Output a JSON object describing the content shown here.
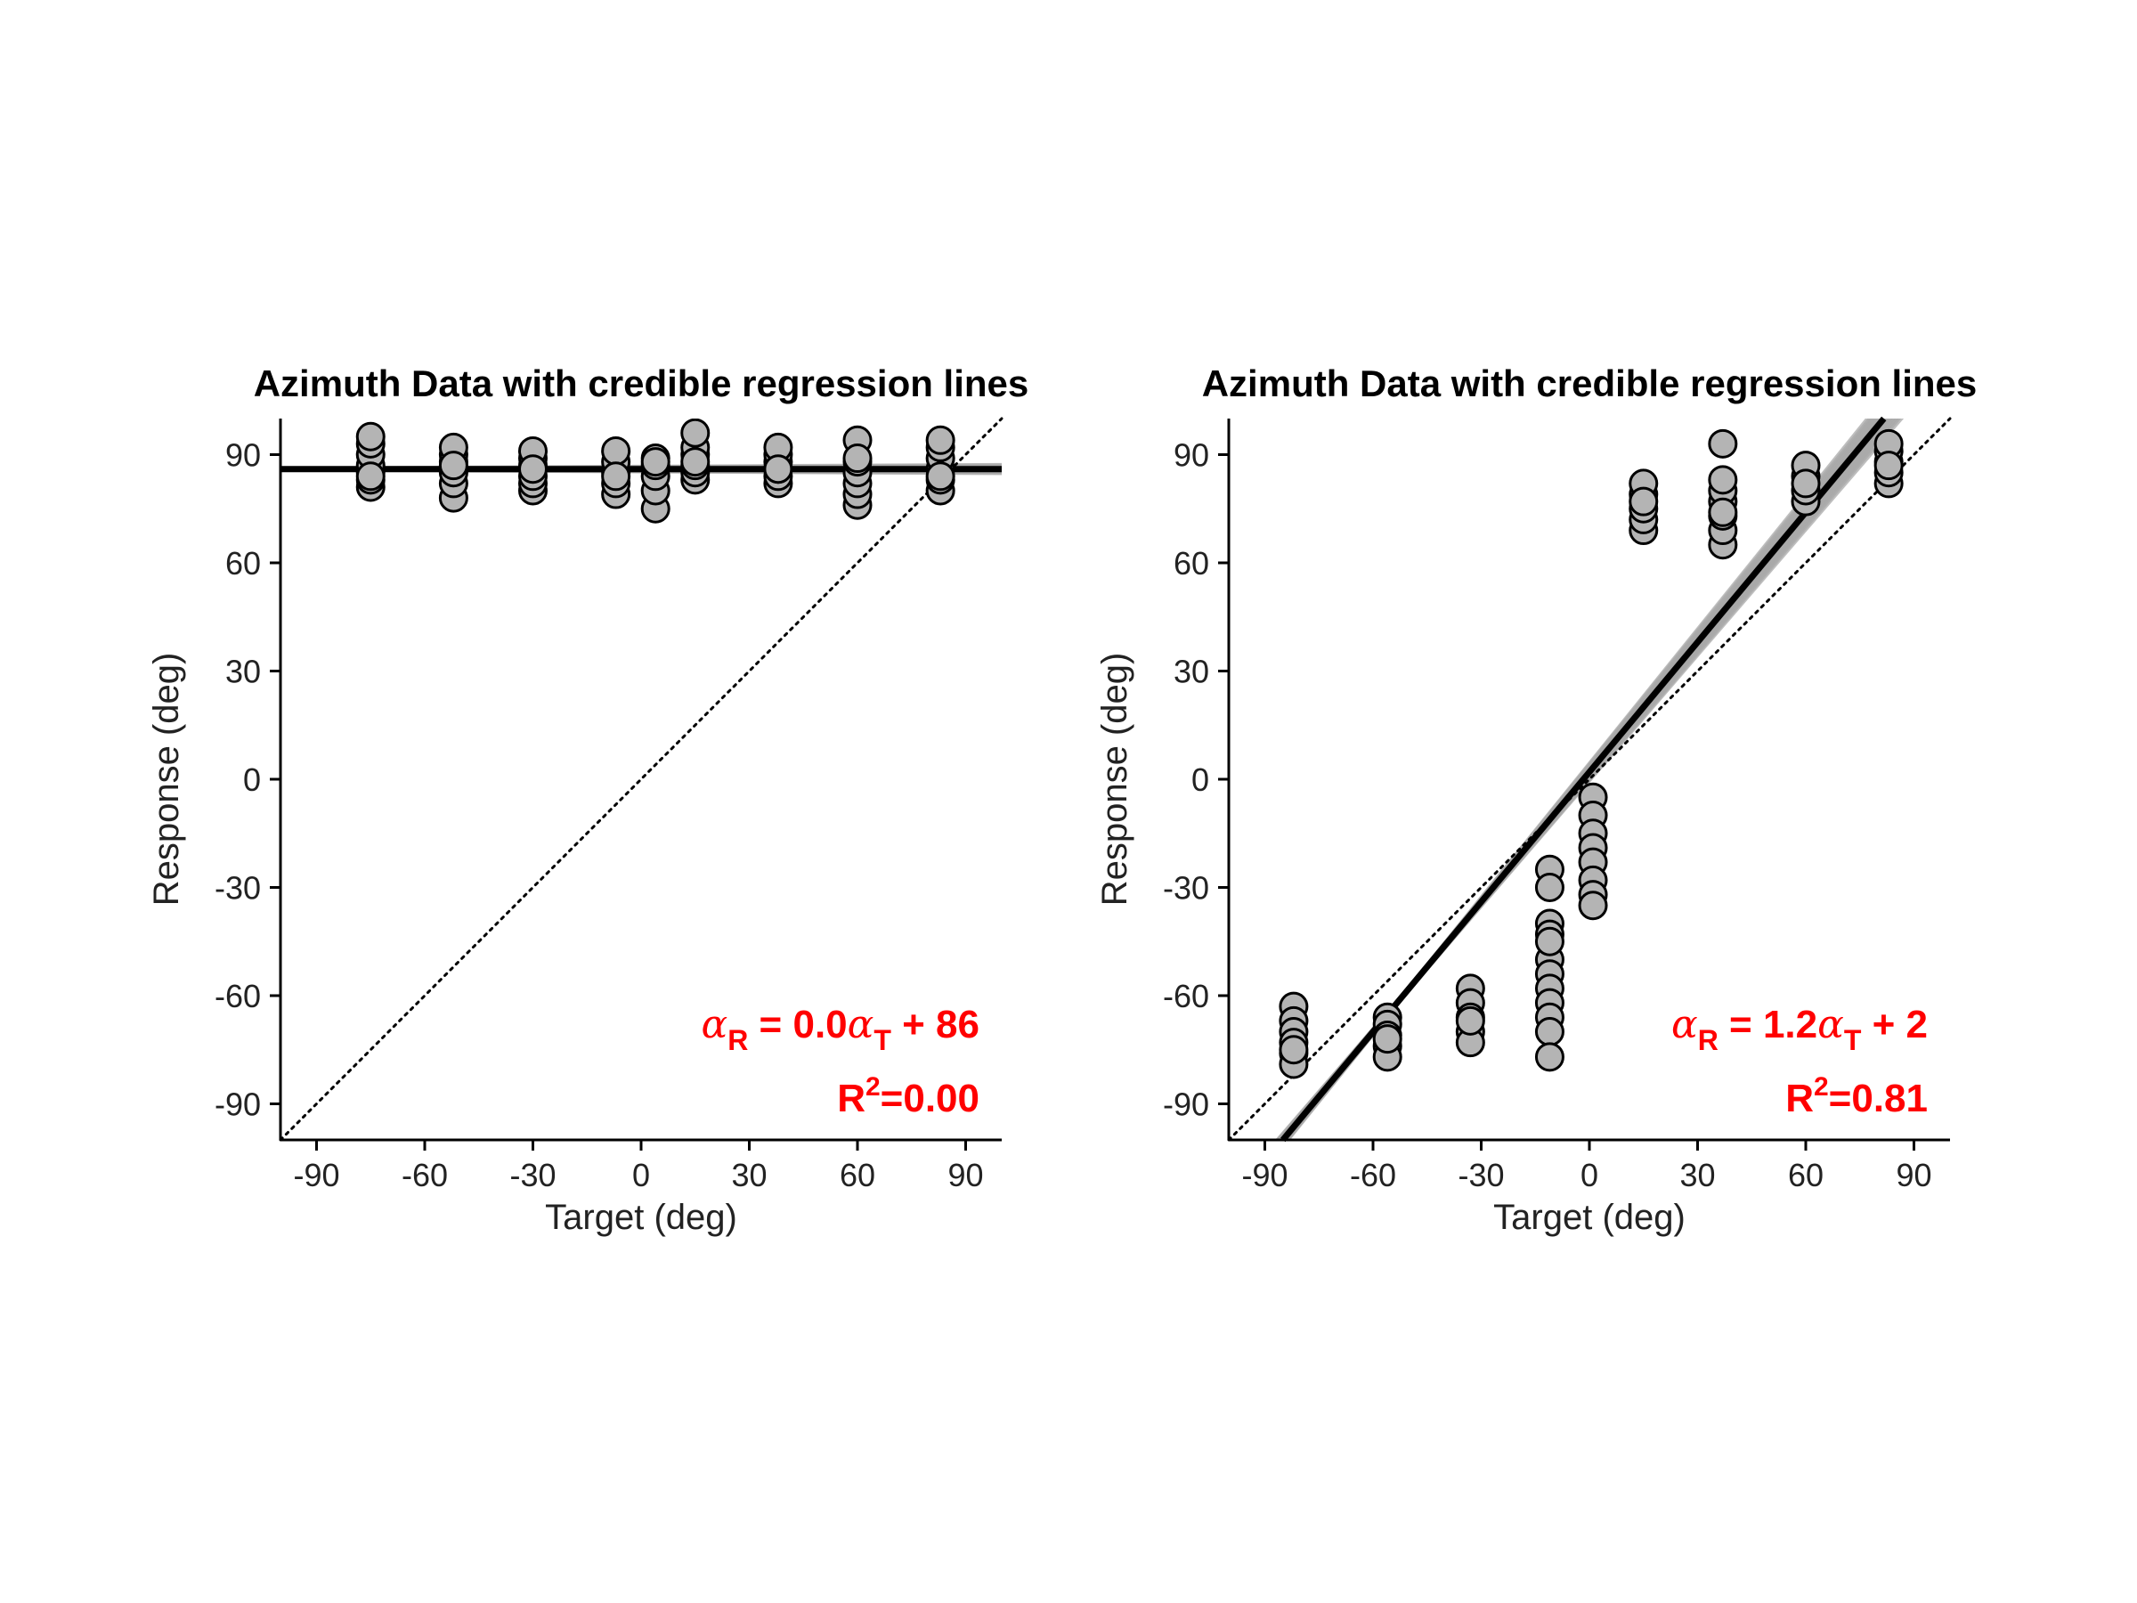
{
  "chart_data": [
    {
      "type": "scatter",
      "title": "Azimuth Data with credible regression lines",
      "xlabel": "Target (deg)",
      "ylabel": "Response (deg)",
      "xlim": [
        -100,
        100
      ],
      "ylim": [
        -100,
        100
      ],
      "xticks": [
        "-90",
        "-60",
        "-30",
        "0",
        "30",
        "60",
        "90"
      ],
      "yticks": [
        "90",
        "60",
        "30",
        "0",
        "-30",
        "-60",
        "-90"
      ],
      "grid": false,
      "identity_line": true,
      "regression": {
        "slope": 0.0,
        "intercept": 86
      },
      "equation": {
        "lhs_greek": "α",
        "lhs_sub": "R",
        "mid": " = 0.0",
        "rhs_greek": "α",
        "rhs_sub": "T",
        "tail": " + 86"
      },
      "r2": {
        "base": "R",
        "sup": "2",
        "tail": "=0.00"
      },
      "x": [
        -75,
        -75,
        -75,
        -75,
        -75,
        -75,
        -75,
        -75,
        -52,
        -52,
        -52,
        -52,
        -52,
        -52,
        -52,
        -30,
        -30,
        -30,
        -30,
        -30,
        -30,
        -30,
        -7,
        -7,
        -7,
        -7,
        -7,
        -7,
        4,
        4,
        4,
        4,
        4,
        4,
        15,
        15,
        15,
        15,
        15,
        15,
        15,
        38,
        38,
        38,
        38,
        38,
        38,
        38,
        60,
        60,
        60,
        60,
        60,
        60,
        60,
        83,
        83,
        83,
        83,
        83,
        83,
        83
      ],
      "y": [
        81,
        83,
        85,
        87,
        90,
        93,
        95,
        84,
        78,
        82,
        85,
        88,
        90,
        92,
        87,
        80,
        82,
        84,
        87,
        89,
        91,
        86,
        79,
        82,
        85,
        88,
        91,
        84,
        75,
        80,
        84,
        87,
        89,
        88,
        83,
        85,
        87,
        90,
        92,
        96,
        88,
        82,
        84,
        86,
        88,
        90,
        92,
        86,
        76,
        79,
        82,
        85,
        88,
        94,
        89,
        80,
        83,
        86,
        89,
        92,
        94,
        84
      ]
    },
    {
      "type": "scatter",
      "title": "Azimuth Data with credible regression lines",
      "xlabel": "Target (deg)",
      "ylabel": "Response (deg)",
      "xlim": [
        -100,
        100
      ],
      "ylim": [
        -100,
        100
      ],
      "xticks": [
        "-90",
        "-60",
        "-30",
        "0",
        "30",
        "60",
        "90"
      ],
      "yticks": [
        "90",
        "60",
        "30",
        "0",
        "-30",
        "-60",
        "-90"
      ],
      "grid": false,
      "identity_line": true,
      "regression": {
        "slope": 1.2,
        "intercept": 2
      },
      "equation": {
        "lhs_greek": "α",
        "lhs_sub": "R",
        "mid": " = 1.2",
        "rhs_greek": "α",
        "rhs_sub": "T",
        "tail": " + 2"
      },
      "r2": {
        "base": "R",
        "sup": "2",
        "tail": "=0.81"
      },
      "x": [
        -82,
        -82,
        -82,
        -82,
        -82,
        -82,
        -82,
        -56,
        -56,
        -56,
        -56,
        -56,
        -56,
        -33,
        -33,
        -33,
        -33,
        -33,
        -33,
        -11,
        -11,
        -11,
        -11,
        -11,
        -11,
        -11,
        -11,
        -11,
        -11,
        -11,
        -11,
        1,
        1,
        1,
        1,
        1,
        1,
        1,
        1,
        15,
        15,
        15,
        15,
        15,
        15,
        37,
        37,
        37,
        37,
        37,
        37,
        37,
        37,
        60,
        60,
        60,
        60,
        60,
        83,
        83,
        83,
        83,
        83,
        83
      ],
      "y": [
        -63,
        -67,
        -70,
        -73,
        -76,
        -79,
        -75,
        -66,
        -68,
        -71,
        -74,
        -77,
        -72,
        -58,
        -62,
        -66,
        -70,
        -73,
        -67,
        -25,
        -30,
        -40,
        -43,
        -50,
        -54,
        -58,
        -62,
        -66,
        -70,
        -77,
        -45,
        -5,
        -10,
        -15,
        -19,
        -23,
        -28,
        -32,
        -35,
        69,
        72,
        75,
        79,
        82,
        77,
        65,
        69,
        73,
        77,
        80,
        83,
        93,
        74,
        77,
        80,
        84,
        87,
        82,
        82,
        85,
        88,
        91,
        93,
        87
      ]
    }
  ]
}
